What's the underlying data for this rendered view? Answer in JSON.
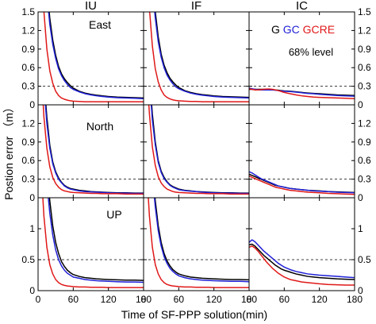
{
  "chart_data": {
    "type": "line",
    "columns": [
      "IU",
      "IF",
      "IC"
    ],
    "rows": [
      "East",
      "North",
      "UP"
    ],
    "xlabel": "Time of  SF-PPP solution(min)",
    "ylabel": "Postion error （m）",
    "xlim": [
      0,
      180
    ],
    "xticks": [
      0,
      60,
      120,
      180
    ],
    "ylims": [
      [
        0,
        1.5
      ],
      [
        0,
        1.5
      ],
      [
        0,
        1.5
      ]
    ],
    "yticks": [
      [
        0,
        0.3,
        0.6,
        0.9,
        1.2,
        1.5
      ],
      [
        0,
        0.3,
        0.6,
        0.9,
        1.2
      ],
      [
        0,
        0.5,
        1
      ]
    ],
    "ytick_labels": [
      [
        "0",
        "0.3",
        "0.6",
        "0.9",
        "1.2",
        "1.5"
      ],
      [
        "0",
        "0.3",
        "0.6",
        "0.9",
        "1.2"
      ],
      [
        "0",
        "0.5",
        "1"
      ]
    ],
    "threshold_lines": [
      0.3,
      0.3,
      0.5
    ],
    "level_label": "68% level",
    "legend": [
      {
        "name": "G",
        "color": "#000000"
      },
      {
        "name": "GC",
        "color": "#1f1fd6"
      },
      {
        "name": "GCRE",
        "color": "#e01818"
      }
    ],
    "x": [
      0,
      5,
      10,
      15,
      20,
      25,
      30,
      35,
      40,
      45,
      50,
      55,
      60,
      70,
      80,
      90,
      100,
      110,
      120,
      135,
      150,
      165,
      180
    ],
    "panels": [
      {
        "row": "East",
        "col": "IU",
        "series": [
          [
            4.0,
            3.2,
            2.5,
            1.9,
            1.4,
            1.05,
            0.8,
            0.62,
            0.5,
            0.42,
            0.36,
            0.31,
            0.27,
            0.22,
            0.19,
            0.17,
            0.155,
            0.145,
            0.135,
            0.125,
            0.12,
            0.115,
            0.11
          ],
          [
            4.0,
            3.1,
            2.4,
            1.8,
            1.3,
            0.98,
            0.75,
            0.58,
            0.47,
            0.39,
            0.33,
            0.28,
            0.25,
            0.21,
            0.18,
            0.16,
            0.145,
            0.135,
            0.125,
            0.115,
            0.11,
            0.105,
            0.1
          ],
          [
            3.2,
            2.3,
            1.5,
            0.9,
            0.55,
            0.35,
            0.22,
            0.15,
            0.11,
            0.09,
            0.075,
            0.065,
            0.06,
            0.055,
            0.05,
            0.05,
            0.05,
            0.05,
            0.05,
            0.05,
            0.05,
            0.05,
            0.05
          ]
        ]
      },
      {
        "row": "East",
        "col": "IF",
        "series": [
          [
            4.0,
            3.3,
            2.6,
            2.0,
            1.5,
            1.1,
            0.82,
            0.64,
            0.52,
            0.43,
            0.37,
            0.32,
            0.28,
            0.23,
            0.2,
            0.18,
            0.165,
            0.155,
            0.145,
            0.135,
            0.13,
            0.125,
            0.12
          ],
          [
            4.0,
            3.2,
            2.5,
            1.9,
            1.4,
            1.02,
            0.77,
            0.6,
            0.48,
            0.4,
            0.34,
            0.29,
            0.26,
            0.22,
            0.19,
            0.17,
            0.155,
            0.145,
            0.135,
            0.125,
            0.12,
            0.115,
            0.11
          ],
          [
            3.3,
            2.4,
            1.55,
            0.95,
            0.58,
            0.37,
            0.24,
            0.16,
            0.12,
            0.095,
            0.08,
            0.07,
            0.065,
            0.06,
            0.055,
            0.055,
            0.05,
            0.05,
            0.05,
            0.05,
            0.05,
            0.05,
            0.05
          ]
        ]
      },
      {
        "row": "East",
        "col": "IC",
        "series": [
          [
            0.25,
            0.25,
            0.25,
            0.25,
            0.25,
            0.25,
            0.25,
            0.25,
            0.24,
            0.24,
            0.235,
            0.23,
            0.225,
            0.22,
            0.21,
            0.2,
            0.19,
            0.185,
            0.18,
            0.17,
            0.16,
            0.155,
            0.15
          ],
          [
            0.27,
            0.26,
            0.25,
            0.245,
            0.24,
            0.24,
            0.24,
            0.24,
            0.24,
            0.235,
            0.23,
            0.225,
            0.22,
            0.215,
            0.205,
            0.195,
            0.185,
            0.18,
            0.17,
            0.16,
            0.15,
            0.145,
            0.14
          ],
          [
            0.26,
            0.25,
            0.24,
            0.24,
            0.245,
            0.25,
            0.255,
            0.255,
            0.25,
            0.24,
            0.23,
            0.215,
            0.2,
            0.18,
            0.16,
            0.145,
            0.135,
            0.125,
            0.12,
            0.115,
            0.11,
            0.105,
            0.1
          ]
        ]
      },
      {
        "row": "North",
        "col": "IU",
        "series": [
          [
            3.5,
            2.7,
            1.9,
            1.3,
            0.85,
            0.58,
            0.42,
            0.32,
            0.25,
            0.2,
            0.17,
            0.15,
            0.14,
            0.12,
            0.11,
            0.1,
            0.095,
            0.09,
            0.085,
            0.08,
            0.08,
            0.075,
            0.075
          ],
          [
            3.5,
            2.6,
            1.8,
            1.2,
            0.8,
            0.55,
            0.4,
            0.3,
            0.24,
            0.19,
            0.16,
            0.14,
            0.13,
            0.11,
            0.1,
            0.095,
            0.09,
            0.085,
            0.08,
            0.075,
            0.075,
            0.07,
            0.07
          ],
          [
            3.0,
            2.1,
            1.3,
            0.8,
            0.5,
            0.33,
            0.23,
            0.17,
            0.13,
            0.11,
            0.1,
            0.09,
            0.085,
            0.08,
            0.075,
            0.07,
            0.07,
            0.065,
            0.065,
            0.065,
            0.06,
            0.06,
            0.06
          ]
        ]
      },
      {
        "row": "North",
        "col": "IF",
        "series": [
          [
            3.6,
            2.8,
            2.0,
            1.35,
            0.9,
            0.6,
            0.43,
            0.33,
            0.26,
            0.21,
            0.18,
            0.16,
            0.14,
            0.12,
            0.11,
            0.1,
            0.095,
            0.09,
            0.085,
            0.08,
            0.08,
            0.075,
            0.075
          ],
          [
            3.6,
            2.7,
            1.9,
            1.25,
            0.85,
            0.57,
            0.41,
            0.31,
            0.25,
            0.2,
            0.17,
            0.15,
            0.13,
            0.115,
            0.105,
            0.1,
            0.09,
            0.085,
            0.08,
            0.075,
            0.075,
            0.07,
            0.07
          ],
          [
            3.0,
            2.1,
            1.35,
            0.82,
            0.52,
            0.34,
            0.24,
            0.18,
            0.14,
            0.12,
            0.1,
            0.09,
            0.085,
            0.08,
            0.075,
            0.07,
            0.07,
            0.065,
            0.065,
            0.065,
            0.06,
            0.06,
            0.06
          ]
        ]
      },
      {
        "row": "North",
        "col": "IC",
        "series": [
          [
            0.38,
            0.36,
            0.34,
            0.32,
            0.3,
            0.28,
            0.26,
            0.24,
            0.22,
            0.2,
            0.19,
            0.18,
            0.17,
            0.15,
            0.14,
            0.13,
            0.12,
            0.115,
            0.11,
            0.1,
            0.095,
            0.09,
            0.085
          ],
          [
            0.42,
            0.4,
            0.37,
            0.34,
            0.31,
            0.29,
            0.27,
            0.25,
            0.23,
            0.21,
            0.19,
            0.18,
            0.17,
            0.15,
            0.14,
            0.13,
            0.12,
            0.11,
            0.105,
            0.1,
            0.09,
            0.085,
            0.08
          ],
          [
            0.35,
            0.33,
            0.31,
            0.29,
            0.27,
            0.25,
            0.23,
            0.21,
            0.19,
            0.17,
            0.16,
            0.15,
            0.14,
            0.12,
            0.11,
            0.1,
            0.09,
            0.085,
            0.08,
            0.07,
            0.065,
            0.06,
            0.055
          ]
        ]
      },
      {
        "row": "UP",
        "col": "IU",
        "series": [
          [
            4.0,
            3.4,
            2.7,
            2.0,
            1.45,
            1.05,
            0.78,
            0.6,
            0.47,
            0.39,
            0.33,
            0.29,
            0.26,
            0.23,
            0.21,
            0.2,
            0.19,
            0.185,
            0.18,
            0.175,
            0.17,
            0.17,
            0.165
          ],
          [
            4.0,
            3.2,
            2.4,
            1.75,
            1.25,
            0.9,
            0.66,
            0.5,
            0.4,
            0.33,
            0.28,
            0.25,
            0.22,
            0.2,
            0.18,
            0.17,
            0.16,
            0.155,
            0.15,
            0.145,
            0.14,
            0.14,
            0.135
          ],
          [
            3.0,
            2.0,
            1.2,
            0.7,
            0.42,
            0.27,
            0.18,
            0.13,
            0.1,
            0.085,
            0.075,
            0.07,
            0.065,
            0.06,
            0.06,
            0.055,
            0.055,
            0.055,
            0.05,
            0.05,
            0.05,
            0.05,
            0.05
          ]
        ]
      },
      {
        "row": "UP",
        "col": "IF",
        "series": [
          [
            4.0,
            3.4,
            2.7,
            2.0,
            1.45,
            1.05,
            0.78,
            0.6,
            0.48,
            0.4,
            0.34,
            0.3,
            0.27,
            0.24,
            0.22,
            0.21,
            0.2,
            0.195,
            0.19,
            0.185,
            0.18,
            0.18,
            0.175
          ],
          [
            4.0,
            3.3,
            2.5,
            1.85,
            1.35,
            0.97,
            0.72,
            0.55,
            0.44,
            0.36,
            0.31,
            0.27,
            0.24,
            0.21,
            0.19,
            0.18,
            0.17,
            0.165,
            0.16,
            0.155,
            0.15,
            0.15,
            0.145
          ],
          [
            3.0,
            2.0,
            1.2,
            0.7,
            0.42,
            0.27,
            0.18,
            0.13,
            0.1,
            0.085,
            0.075,
            0.07,
            0.065,
            0.06,
            0.06,
            0.055,
            0.055,
            0.055,
            0.05,
            0.05,
            0.05,
            0.05,
            0.05
          ]
        ]
      },
      {
        "row": "UP",
        "col": "IC",
        "series": [
          [
            0.74,
            0.75,
            0.72,
            0.67,
            0.62,
            0.57,
            0.53,
            0.49,
            0.45,
            0.41,
            0.38,
            0.35,
            0.33,
            0.3,
            0.27,
            0.25,
            0.23,
            0.22,
            0.21,
            0.2,
            0.19,
            0.185,
            0.18
          ],
          [
            0.78,
            0.82,
            0.79,
            0.74,
            0.69,
            0.64,
            0.6,
            0.56,
            0.52,
            0.48,
            0.44,
            0.41,
            0.38,
            0.34,
            0.31,
            0.29,
            0.27,
            0.26,
            0.25,
            0.24,
            0.23,
            0.22,
            0.21
          ],
          [
            0.7,
            0.72,
            0.69,
            0.64,
            0.58,
            0.52,
            0.46,
            0.41,
            0.36,
            0.32,
            0.28,
            0.25,
            0.22,
            0.18,
            0.16,
            0.14,
            0.13,
            0.12,
            0.11,
            0.1,
            0.095,
            0.09,
            0.09
          ]
        ]
      }
    ]
  }
}
